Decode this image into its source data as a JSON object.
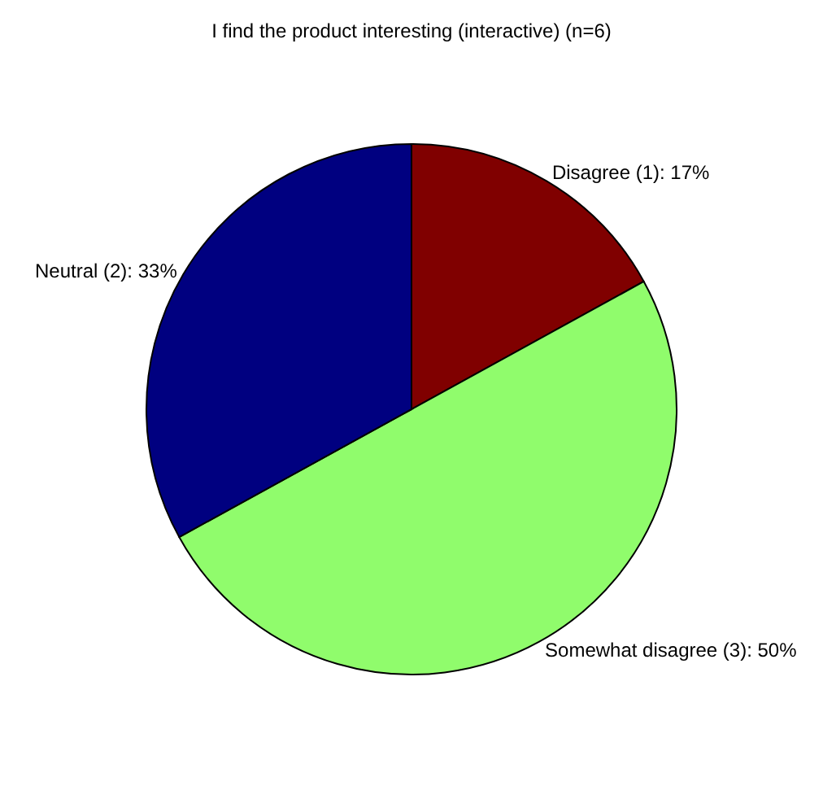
{
  "chart_data": {
    "type": "pie",
    "title": "I find the product interesting (interactive) (n=6)",
    "categories": [
      "Disagree (1): 17%",
      "Somewhat disagree (3): 50%",
      "Neutral (2): 33%"
    ],
    "values": [
      17,
      50,
      33
    ],
    "colors": [
      "#800000",
      "#90fc6c",
      "#000080"
    ],
    "legend": false
  }
}
